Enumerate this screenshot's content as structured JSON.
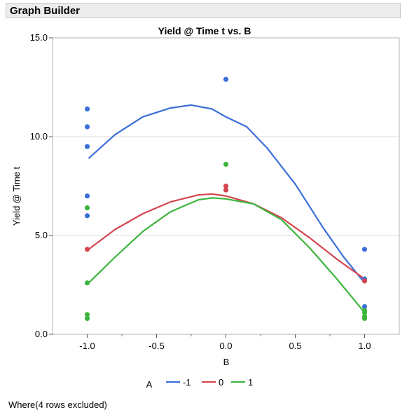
{
  "header": {
    "title": "Graph Builder"
  },
  "footer": {
    "where_text": "Where(4 rows excluded)"
  },
  "chart_data": {
    "type": "scatter",
    "title": "Yield @ Time t vs. B",
    "xlabel": "B",
    "ylabel": "Yield @ Time t",
    "xlim": [
      -1.25,
      1.25
    ],
    "ylim": [
      0,
      15
    ],
    "x_ticks": [
      "-1.0",
      "-0.5",
      "0.0",
      "0.5",
      "1.0"
    ],
    "y_ticks": [
      "0.0",
      "5.0",
      "10.0",
      "15.0"
    ],
    "grid": true,
    "legend": {
      "title": "A",
      "position": "bottom"
    },
    "series": [
      {
        "name": "-1",
        "color": "#3b6fd8",
        "points": [
          [
            -1,
            11.4
          ],
          [
            -1,
            10.5
          ],
          [
            -1,
            9.5
          ],
          [
            -1,
            7.0
          ],
          [
            -1,
            6.0
          ],
          [
            0,
            12.9
          ],
          [
            1,
            4.3
          ],
          [
            1,
            2.8
          ],
          [
            1,
            1.4
          ]
        ],
        "smoother": [
          [
            -0.99,
            8.9
          ],
          [
            -0.8,
            10.1
          ],
          [
            -0.6,
            11.0
          ],
          [
            -0.4,
            11.45
          ],
          [
            -0.25,
            11.6
          ],
          [
            -0.1,
            11.4
          ],
          [
            0,
            11.0
          ],
          [
            0.15,
            10.5
          ],
          [
            0.3,
            9.4
          ],
          [
            0.5,
            7.6
          ],
          [
            0.7,
            5.4
          ],
          [
            0.85,
            3.9
          ],
          [
            1,
            2.6
          ]
        ]
      },
      {
        "name": "0",
        "color": "#d64550",
        "points": [
          [
            -1,
            4.3
          ],
          [
            0,
            7.5
          ],
          [
            0,
            7.3
          ],
          [
            1,
            2.7
          ]
        ],
        "smoother": [
          [
            -0.99,
            4.3
          ],
          [
            -0.8,
            5.3
          ],
          [
            -0.6,
            6.1
          ],
          [
            -0.4,
            6.7
          ],
          [
            -0.2,
            7.05
          ],
          [
            -0.1,
            7.1
          ],
          [
            0,
            7.0
          ],
          [
            0.2,
            6.6
          ],
          [
            0.4,
            5.9
          ],
          [
            0.6,
            4.9
          ],
          [
            0.8,
            3.8
          ],
          [
            1,
            2.8
          ]
        ]
      },
      {
        "name": "1",
        "color": "#3db53d",
        "points": [
          [
            -1,
            6.4
          ],
          [
            -1,
            2.6
          ],
          [
            -1,
            1.0
          ],
          [
            -1,
            0.8
          ],
          [
            0,
            8.6
          ],
          [
            1,
            1.2
          ],
          [
            1,
            1.1
          ],
          [
            1,
            0.9
          ],
          [
            1,
            0.8
          ]
        ],
        "smoother": [
          [
            -0.99,
            2.6
          ],
          [
            -0.8,
            3.9
          ],
          [
            -0.6,
            5.2
          ],
          [
            -0.4,
            6.2
          ],
          [
            -0.2,
            6.8
          ],
          [
            -0.1,
            6.9
          ],
          [
            0,
            6.85
          ],
          [
            0.2,
            6.6
          ],
          [
            0.4,
            5.8
          ],
          [
            0.6,
            4.4
          ],
          [
            0.8,
            2.8
          ],
          [
            1,
            1.1
          ]
        ]
      }
    ]
  }
}
